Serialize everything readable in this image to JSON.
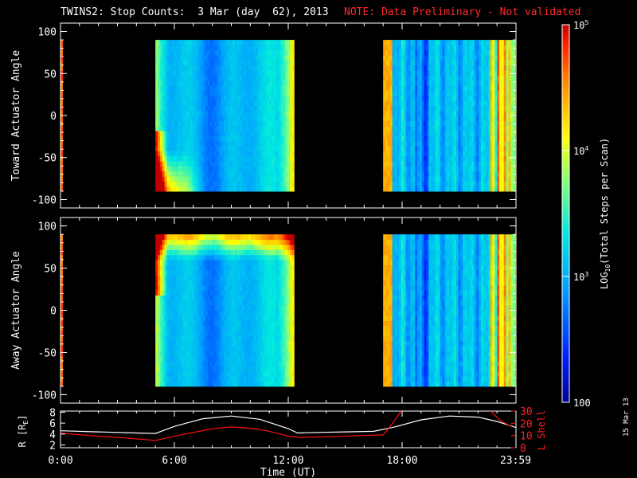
{
  "header": {
    "title": "TWINS2: Stop Counts:  3 Mar (day  62), 2013",
    "note": "NOTE: Data Preliminary - Not validated",
    "note_color": "#ff2a2a"
  },
  "stamp": "15 Mar 13",
  "chart_data": [
    {
      "type": "heatmap",
      "panel": "top",
      "ylabel": "Toward Actuator Angle",
      "ylim": [
        -110,
        110
      ],
      "yticks": [
        100,
        50,
        0,
        -50,
        -100
      ],
      "data_range_deg": [
        -90,
        90
      ],
      "xlim_hours": [
        0,
        24
      ],
      "data_intervals_hours": [
        [
          0,
          0.1
        ],
        [
          5.0,
          12.3
        ],
        [
          17.0,
          24.0
        ]
      ],
      "colorscale": "log10 counts, 100 to 1e5 (blue to red)"
    },
    {
      "type": "heatmap",
      "panel": "middle",
      "ylabel": "Away Actuator Angle",
      "ylim": [
        -110,
        110
      ],
      "yticks": [
        100,
        50,
        0,
        -50,
        -100
      ],
      "data_range_deg": [
        -90,
        90
      ],
      "xlim_hours": [
        0,
        24
      ],
      "data_intervals_hours": [
        [
          0,
          0.1
        ],
        [
          5.0,
          12.3
        ],
        [
          17.0,
          24.0
        ]
      ],
      "colorscale": "log10 counts, 100 to 1e5 (blue to red)"
    },
    {
      "type": "line",
      "panel": "bottom",
      "xlabel": "Time (UT)",
      "xticks": [
        "0:00",
        "6:00",
        "12:00",
        "18:00",
        "23:59"
      ],
      "xtick_hours": [
        0,
        6,
        12,
        18,
        23.98
      ],
      "ylabel_left": "R [R",
      "ylabel_left_sub": "E",
      "ylabel_left_close": "]",
      "ylim_left": [
        1.5,
        8.2
      ],
      "yticks_left": [
        2,
        4,
        6,
        8
      ],
      "ylabel_right": "L Shell",
      "ylim_right": [
        0,
        30
      ],
      "yticks_right": [
        0,
        10,
        20,
        30
      ],
      "right_axis_color": "#ff2020",
      "series": [
        {
          "color": "#ffffff",
          "axis": "left",
          "x": [
            0,
            2,
            4,
            5,
            6,
            7.5,
            9,
            10.5,
            12,
            12.5,
            13.5,
            15,
            16.5,
            17.5,
            19,
            20.5,
            22,
            23,
            24
          ],
          "y": [
            4.6,
            4.4,
            4.2,
            4.1,
            5.4,
            6.8,
            7.3,
            6.7,
            5.0,
            4.2,
            4.3,
            4.4,
            4.5,
            5.2,
            6.6,
            7.3,
            7.1,
            6.3,
            5.2
          ]
        },
        {
          "color": "#ff1010",
          "axis": "right",
          "x": [
            0,
            1.5,
            3,
            5,
            6.5,
            8,
            9,
            10,
            11,
            12,
            12.6,
            14,
            16,
            17.0,
            17.5,
            18.0
          ],
          "y": [
            12,
            10,
            8.5,
            6,
            11,
            15.5,
            17,
            16,
            13.5,
            9.5,
            8.5,
            9,
            10,
            10.5,
            20,
            31
          ]
        },
        {
          "color": "#ff1010",
          "axis": "right",
          "x": [
            22.6,
            23.2,
            23.8
          ],
          "y": [
            31,
            22,
            17
          ]
        }
      ]
    },
    {
      "type": "colorbar",
      "label": "LOG10(Total Steps per Scan)",
      "label_main": "LOG",
      "label_sub": "10",
      "label_rest": "(Total Steps per Scan)",
      "min": 100,
      "max": 100000,
      "ticks": [
        {
          "value": 100,
          "base": "100",
          "exp": ""
        },
        {
          "value": 1000,
          "base": "10",
          "exp": "3"
        },
        {
          "value": 10000,
          "base": "10",
          "exp": "4"
        },
        {
          "value": 100000,
          "base": "10",
          "exp": "5"
        }
      ]
    }
  ]
}
